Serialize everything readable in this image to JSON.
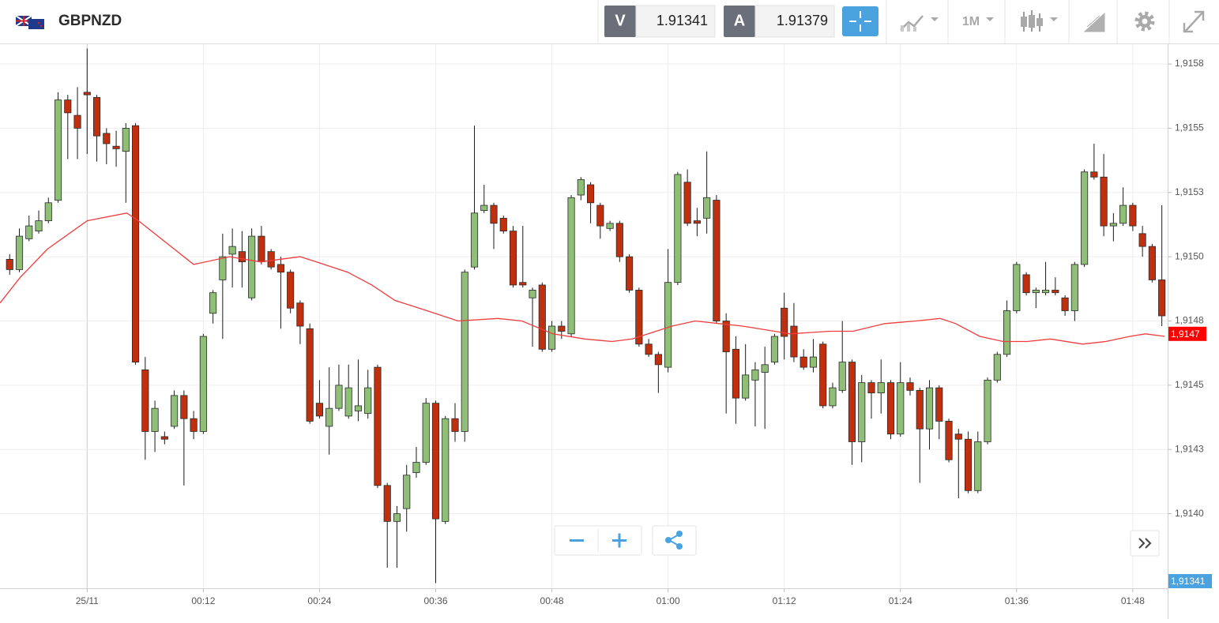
{
  "header": {
    "symbol": "GBPNZD",
    "bid_label": "V",
    "bid": 1.91341,
    "ask_label": "A",
    "ask": 1.91379,
    "timeframe": "1M"
  },
  "chart_data": {
    "type": "candlestick",
    "up_color": "#8fbe76",
    "down_color": "#c0300f",
    "x": [
      -8,
      -7,
      -6,
      -5,
      -4,
      -3,
      -2,
      -1,
      0,
      1,
      2,
      3,
      4,
      5,
      6,
      7,
      8,
      9,
      10,
      11,
      12,
      13,
      14,
      15,
      16,
      17,
      18,
      19,
      20,
      21,
      22,
      23,
      24,
      25,
      26,
      27,
      28,
      29,
      30,
      31,
      32,
      33,
      34,
      35,
      36,
      37,
      38,
      39,
      40,
      41,
      42,
      43,
      44,
      45,
      46,
      47,
      48,
      49,
      50,
      51,
      52,
      53,
      54,
      55,
      56,
      57,
      58,
      59,
      60,
      61,
      62,
      63,
      64,
      65,
      66,
      67,
      68,
      69,
      70,
      71,
      72,
      73,
      74,
      75,
      76,
      77,
      78,
      79,
      80,
      81,
      82,
      83,
      84,
      85,
      86,
      87,
      88,
      89,
      90,
      91,
      92,
      93,
      94,
      95,
      96,
      97,
      98,
      99,
      100,
      101,
      102,
      103,
      104,
      105,
      106,
      107,
      108,
      109,
      110,
      111
    ],
    "open": [
      1.91499,
      1.91495,
      1.91507,
      1.9151,
      1.91514,
      1.91522,
      1.91561,
      1.91555,
      1.91564,
      1.91562,
      1.91548,
      1.91543,
      1.91541,
      1.91551,
      1.91456,
      1.91432,
      1.9143,
      1.91434,
      1.91446,
      1.91437,
      1.91432,
      1.91478,
      1.91491,
      1.91501,
      1.91502,
      1.91484,
      1.91508,
      1.91502,
      1.91497,
      1.91494,
      1.91482,
      1.91472,
      1.91443,
      1.91434,
      1.91441,
      1.91438,
      1.9144,
      1.91439,
      1.91457,
      1.91411,
      1.91397,
      1.91402,
      1.91416,
      1.9142,
      1.91443,
      1.91397,
      1.91437,
      1.91432,
      1.91496,
      1.91518,
      1.9152,
      1.91515,
      1.9151,
      1.9149,
      1.91484,
      1.91489,
      1.91464,
      1.91473,
      1.9147,
      1.91524,
      1.91528,
      1.9152,
      1.91511,
      1.91513,
      1.915,
      1.91487,
      1.91466,
      1.91462,
      1.91457,
      1.9149,
      1.91529,
      1.91514,
      1.91515,
      1.91522,
      1.91475,
      1.91464,
      1.91445,
      1.91452,
      1.91455,
      1.91459,
      1.9148,
      1.91473,
      1.91461,
      1.91457,
      1.91466,
      1.91442,
      1.91448,
      1.91459,
      1.91428,
      1.91451,
      1.91447,
      1.91451,
      1.91431,
      1.91451,
      1.91448,
      1.91433,
      1.91449,
      1.91436,
      1.91431,
      1.91429,
      1.91409,
      1.91428,
      1.91452,
      1.91462,
      1.91479,
      1.91493,
      1.91486,
      1.91486,
      1.91487,
      1.91484,
      1.91479,
      1.91497,
      1.91533,
      1.91531,
      1.91512,
      1.91513,
      1.9152,
      1.91509,
      1.91504,
      1.91491
    ],
    "high": [
      1.91501,
      1.91511,
      1.91516,
      1.91518,
      1.91523,
      1.91564,
      1.91563,
      1.91566,
      1.91581,
      1.91563,
      1.9155,
      1.91549,
      1.91552,
      1.91552,
      1.91461,
      1.91444,
      1.91432,
      1.91448,
      1.91448,
      1.9144,
      1.9147,
      1.91487,
      1.91509,
      1.91511,
      1.9151,
      1.91511,
      1.91512,
      1.91503,
      1.915,
      1.91495,
      1.91483,
      1.91474,
      1.91452,
      1.91457,
      1.91458,
      1.91458,
      1.9146,
      1.91456,
      1.91458,
      1.91412,
      1.91403,
      1.91419,
      1.91426,
      1.91445,
      1.91444,
      1.91438,
      1.91443,
      1.91495,
      1.91551,
      1.91528,
      1.91521,
      1.91516,
      1.91512,
      1.91512,
      1.91488,
      1.9149,
      1.91475,
      1.91475,
      1.91524,
      1.91531,
      1.91529,
      1.91521,
      1.91514,
      1.91514,
      1.91501,
      1.91488,
      1.91468,
      1.91463,
      1.91503,
      1.91533,
      1.91534,
      1.91519,
      1.91541,
      1.91524,
      1.91478,
      1.91469,
      1.91466,
      1.91459,
      1.91465,
      1.9147,
      1.91486,
      1.91482,
      1.91464,
      1.91468,
      1.91467,
      1.91451,
      1.91475,
      1.9146,
      1.91454,
      1.91452,
      1.9146,
      1.91452,
      1.91459,
      1.91453,
      1.91449,
      1.91452,
      1.9145,
      1.91437,
      1.91433,
      1.91432,
      1.91432,
      1.91453,
      1.91463,
      1.91483,
      1.91498,
      1.91494,
      1.91488,
      1.91498,
      1.91492,
      1.91485,
      1.91498,
      1.91534,
      1.91544,
      1.9154,
      1.91517,
      1.91527,
      1.91521,
      1.91512,
      1.91505,
      1.9152
    ],
    "low": [
      1.91493,
      1.91494,
      1.91506,
      1.91509,
      1.91513,
      1.91521,
      1.91538,
      1.91538,
      1.9154,
      1.91537,
      1.91536,
      1.91535,
      1.91521,
      1.91458,
      1.91421,
      1.91424,
      1.91427,
      1.91433,
      1.91411,
      1.91429,
      1.91431,
      1.91474,
      1.91468,
      1.91488,
      1.91488,
      1.91483,
      1.91497,
      1.91495,
      1.91472,
      1.91478,
      1.91466,
      1.91435,
      1.91437,
      1.91423,
      1.9144,
      1.91437,
      1.91436,
      1.91437,
      1.9141,
      1.91379,
      1.91379,
      1.91393,
      1.91414,
      1.91419,
      1.91373,
      1.91396,
      1.91428,
      1.91428,
      1.91495,
      1.91517,
      1.91503,
      1.91509,
      1.91488,
      1.91488,
      1.91465,
      1.91463,
      1.91463,
      1.91468,
      1.91469,
      1.91522,
      1.91513,
      1.91507,
      1.9151,
      1.91498,
      1.91486,
      1.91465,
      1.91461,
      1.91447,
      1.91455,
      1.91489,
      1.91512,
      1.91508,
      1.91509,
      1.91474,
      1.91439,
      1.91435,
      1.91444,
      1.91434,
      1.91433,
      1.91458,
      1.9146,
      1.91459,
      1.91456,
      1.91455,
      1.91441,
      1.91441,
      1.91447,
      1.91419,
      1.9142,
      1.91437,
      1.91439,
      1.91429,
      1.9143,
      1.91446,
      1.91412,
      1.91425,
      1.91429,
      1.9142,
      1.91406,
      1.91408,
      1.91408,
      1.91427,
      1.91451,
      1.91461,
      1.91478,
      1.91485,
      1.9148,
      1.91485,
      1.91485,
      1.91477,
      1.91475,
      1.91496,
      1.9153,
      1.91508,
      1.91506,
      1.91512,
      1.9151,
      1.915,
      1.9149,
      1.91473
    ],
    "close": [
      1.91495,
      1.91508,
      1.91512,
      1.91514,
      1.91521,
      1.91561,
      1.91556,
      1.9155,
      1.91563,
      1.91547,
      1.91544,
      1.91542,
      1.9155,
      1.91459,
      1.91432,
      1.91441,
      1.91429,
      1.91446,
      1.91437,
      1.91432,
      1.91469,
      1.91486,
      1.915,
      1.91504,
      1.91498,
      1.91508,
      1.91498,
      1.91496,
      1.91494,
      1.9148,
      1.91473,
      1.91436,
      1.91438,
      1.91441,
      1.9145,
      1.91449,
      1.91442,
      1.91449,
      1.91411,
      1.91397,
      1.914,
      1.91415,
      1.9142,
      1.91443,
      1.91398,
      1.91437,
      1.91432,
      1.91494,
      1.91517,
      1.9152,
      1.91513,
      1.9151,
      1.91489,
      1.91489,
      1.91487,
      1.91464,
      1.91473,
      1.91471,
      1.91523,
      1.9153,
      1.91521,
      1.91512,
      1.91513,
      1.915,
      1.91487,
      1.91466,
      1.91462,
      1.91458,
      1.9149,
      1.91532,
      1.91513,
      1.91513,
      1.91523,
      1.91475,
      1.91463,
      1.91445,
      1.91454,
      1.91456,
      1.91458,
      1.91469,
      1.91469,
      1.91461,
      1.91457,
      1.91461,
      1.91442,
      1.91449,
      1.91459,
      1.91428,
      1.91451,
      1.91447,
      1.91451,
      1.91431,
      1.91451,
      1.91448,
      1.91433,
      1.91449,
      1.91436,
      1.91421,
      1.91429,
      1.91409,
      1.91428,
      1.91452,
      1.91462,
      1.91479,
      1.91497,
      1.91486,
      1.91487,
      1.91487,
      1.91486,
      1.91479,
      1.91497,
      1.91533,
      1.91531,
      1.91512,
      1.91513,
      1.9152,
      1.91512,
      1.91504,
      1.91491,
      1.91477
    ],
    "moving_average": {
      "color": "#f03c3c",
      "x": [
        -9.0,
        -6.9,
        -4.1,
        0,
        4.1,
        5.3,
        11.0,
        14.7,
        17.9,
        22.0,
        23.7,
        26.9,
        29.4,
        31.8,
        35.1,
        38.3,
        42.4,
        44.9,
        48.1,
        51.4,
        54.2,
        56.3,
        60.4,
        62.8,
        65.3,
        67.7,
        71.0,
        72.6,
        76.7,
        79.1,
        82.4,
        85.6,
        88.1,
        89.7,
        92.2,
        94.6,
        97.1,
        99.5,
        102.8,
        105.2,
        107.7,
        109.3,
        111.3
      ],
      "values": [
        1.91482,
        1.91492,
        1.91503,
        1.91514,
        1.91517,
        1.91514,
        1.91497,
        1.915,
        1.91498,
        1.915,
        1.91498,
        1.91494,
        1.91489,
        1.91483,
        1.91479,
        1.91475,
        1.91476,
        1.91475,
        1.9147,
        1.91468,
        1.91467,
        1.91468,
        1.91473,
        1.91475,
        1.91474,
        1.91473,
        1.91471,
        1.9147,
        1.91471,
        1.91471,
        1.91474,
        1.91475,
        1.91476,
        1.91474,
        1.91469,
        1.91467,
        1.91467,
        1.91468,
        1.91466,
        1.91467,
        1.91469,
        1.9147,
        1.91469
      ]
    },
    "xlim": [
      -9,
      111.6
    ],
    "xticks": [
      {
        "value": 0,
        "label": "25/11"
      },
      {
        "value": 12,
        "label": "00:12"
      },
      {
        "value": 24,
        "label": "00:24"
      },
      {
        "value": 36,
        "label": "00:36"
      },
      {
        "value": 48,
        "label": "00:48"
      },
      {
        "value": 60,
        "label": "01:00"
      },
      {
        "value": 72,
        "label": "01:12"
      },
      {
        "value": 84,
        "label": "01:24"
      },
      {
        "value": 96,
        "label": "01:36"
      },
      {
        "value": 108,
        "label": "01:48"
      }
    ],
    "ylim": [
      1.91371,
      1.91583
    ],
    "yticks": [
      {
        "value": 1.91575,
        "label": "1,9158"
      },
      {
        "value": 1.9155,
        "label": "1,9155"
      },
      {
        "value": 1.91525,
        "label": "1,9153"
      },
      {
        "value": 1.915,
        "label": "1,9150"
      },
      {
        "value": 1.91475,
        "label": "1,9148"
      },
      {
        "value": 1.9145,
        "label": "1,9145"
      },
      {
        "value": 1.91425,
        "label": "1,9143"
      },
      {
        "value": 1.914,
        "label": "1,9140"
      }
    ],
    "grid": true,
    "price_labels": [
      {
        "value": 1.9147,
        "label": "1,9147",
        "color": "#ff0000"
      },
      {
        "value": 1.91341,
        "label": "1,91341",
        "color": "#4aa3df"
      }
    ]
  }
}
